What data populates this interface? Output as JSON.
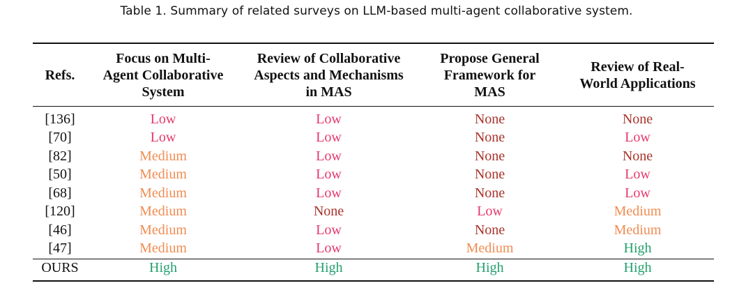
{
  "caption": "Table 1.  Summary of related surveys on LLM-based multi-agent collaborative system.",
  "colors": {
    "low": "#e5386b",
    "none": "#a8332b",
    "medium": "#f08c52",
    "high": "#23a06b"
  },
  "headers": {
    "refs": "Refs.",
    "col1": [
      "Focus on Multi-",
      "Agent Collaborative",
      "System"
    ],
    "col2": [
      "Review of Collaborative",
      "Aspects and Mechanisms",
      "in MAS"
    ],
    "col3": [
      "Propose General",
      "Framework for",
      "MAS"
    ],
    "col4": [
      "Review of Real-",
      "World Applications"
    ]
  },
  "rows": [
    {
      "ref": "[136]",
      "vals": [
        "Low",
        "Low",
        "None",
        "None"
      ]
    },
    {
      "ref": "[70]",
      "vals": [
        "Low",
        "Low",
        "None",
        "Low"
      ]
    },
    {
      "ref": "[82]",
      "vals": [
        "Medium",
        "Low",
        "None",
        "None"
      ]
    },
    {
      "ref": "[50]",
      "vals": [
        "Medium",
        "Low",
        "None",
        "Low"
      ]
    },
    {
      "ref": "[68]",
      "vals": [
        "Medium",
        "Low",
        "None",
        "Low"
      ]
    },
    {
      "ref": "[120]",
      "vals": [
        "Medium",
        "None",
        "Low",
        "Medium"
      ]
    },
    {
      "ref": "[46]",
      "vals": [
        "Medium",
        "Low",
        "None",
        "Medium"
      ]
    },
    {
      "ref": "[47]",
      "vals": [
        "Medium",
        "Low",
        "Medium",
        "High"
      ]
    }
  ],
  "ours": {
    "ref": "OURS",
    "vals": [
      "High",
      "High",
      "High",
      "High"
    ]
  }
}
